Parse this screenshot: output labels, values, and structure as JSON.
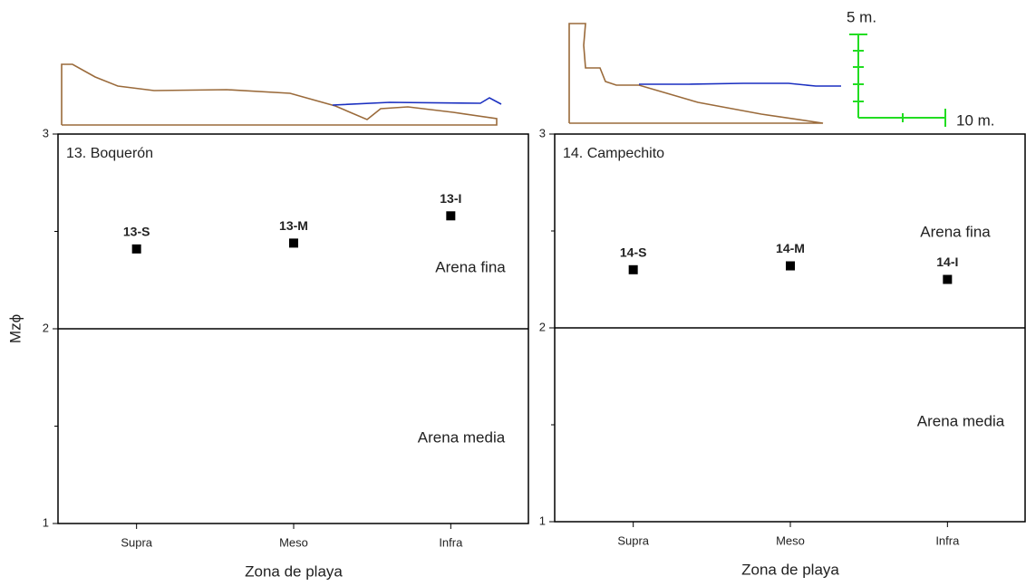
{
  "chart_data": [
    {
      "type": "point",
      "title": "13. Boquerón",
      "categories": [
        "Supra",
        "Meso",
        "Infra"
      ],
      "values": [
        2.41,
        2.44,
        2.58
      ],
      "point_labels": [
        "13-S",
        "13-M",
        "13-I"
      ],
      "color": "#000000",
      "ylim": [
        1,
        3
      ],
      "yticks": [
        1,
        2,
        3
      ],
      "minor_yticks": [
        1.5,
        2.5
      ],
      "reference_line": 2,
      "xlabel": "Zona de playa",
      "ylabel": "Mzϕ",
      "annotations": [
        "Arena fina",
        "Arena media"
      ]
    },
    {
      "type": "point",
      "title": "14. Campechito",
      "categories": [
        "Supra",
        "Meso",
        "Infra"
      ],
      "values": [
        2.3,
        2.32,
        2.25
      ],
      "point_labels": [
        "14-S",
        "14-M",
        "14-I"
      ],
      "color": "#000000",
      "ylim": [
        1,
        3
      ],
      "yticks": [
        1,
        2,
        3
      ],
      "minor_yticks": [
        1.5,
        2.5
      ],
      "reference_line": 2,
      "xlabel": "Zona de playa",
      "annotations": [
        "Arena fina",
        "Arena media"
      ]
    }
  ],
  "scale_bar": {
    "vertical_label": "5 m.",
    "horizontal_label": "10 m."
  }
}
